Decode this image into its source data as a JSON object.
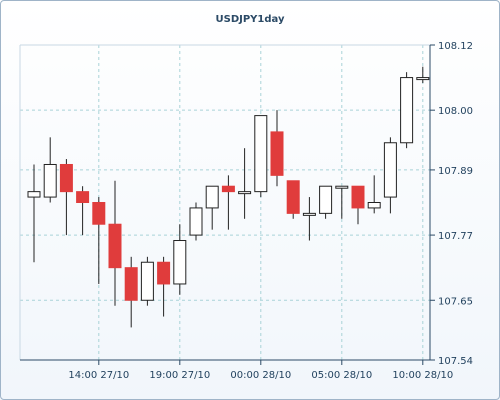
{
  "chart_data": {
    "type": "candlestick",
    "title": "USDJPY1day",
    "xlabel": "",
    "ylabel": "",
    "ylim": [
      107.54,
      108.12
    ],
    "y_ticks": [
      "108.12",
      "108.00",
      "107.89",
      "107.77",
      "107.65",
      "107.54"
    ],
    "x_ticks": [
      "14:00 27/10",
      "19:00 27/10",
      "00:00 28/10",
      "05:00 28/10",
      "10:00 28/10"
    ],
    "grid": true,
    "y_axis_position": "right",
    "colors": {
      "up_fill": "#ffffff",
      "down_fill": "#e03c3c",
      "outline": "#222222",
      "grid": "#a9d3d8"
    },
    "candles": [
      {
        "o": 107.84,
        "h": 107.9,
        "l": 107.72,
        "c": 107.85
      },
      {
        "o": 107.84,
        "h": 107.95,
        "l": 107.83,
        "c": 107.9
      },
      {
        "o": 107.9,
        "h": 107.91,
        "l": 107.77,
        "c": 107.85
      },
      {
        "o": 107.85,
        "h": 107.86,
        "l": 107.77,
        "c": 107.83
      },
      {
        "o": 107.83,
        "h": 107.84,
        "l": 107.68,
        "c": 107.79
      },
      {
        "o": 107.79,
        "h": 107.87,
        "l": 107.64,
        "c": 107.71
      },
      {
        "o": 107.71,
        "h": 107.73,
        "l": 107.6,
        "c": 107.65
      },
      {
        "o": 107.65,
        "h": 107.73,
        "l": 107.64,
        "c": 107.72
      },
      {
        "o": 107.72,
        "h": 107.73,
        "l": 107.62,
        "c": 107.68
      },
      {
        "o": 107.68,
        "h": 107.79,
        "l": 107.66,
        "c": 107.76
      },
      {
        "o": 107.77,
        "h": 107.83,
        "l": 107.76,
        "c": 107.82
      },
      {
        "o": 107.82,
        "h": 107.86,
        "l": 107.78,
        "c": 107.86
      },
      {
        "o": 107.86,
        "h": 107.88,
        "l": 107.78,
        "c": 107.85
      },
      {
        "o": 107.85,
        "h": 107.93,
        "l": 107.8,
        "c": 107.85
      },
      {
        "o": 107.85,
        "h": 107.99,
        "l": 107.84,
        "c": 107.99
      },
      {
        "o": 107.96,
        "h": 108.0,
        "l": 107.86,
        "c": 107.88
      },
      {
        "o": 107.87,
        "h": 107.87,
        "l": 107.8,
        "c": 107.81
      },
      {
        "o": 107.81,
        "h": 107.84,
        "l": 107.76,
        "c": 107.81
      },
      {
        "o": 107.81,
        "h": 107.86,
        "l": 107.8,
        "c": 107.86
      },
      {
        "o": 107.86,
        "h": 107.86,
        "l": 107.8,
        "c": 107.86
      },
      {
        "o": 107.86,
        "h": 107.86,
        "l": 107.79,
        "c": 107.82
      },
      {
        "o": 107.82,
        "h": 107.88,
        "l": 107.81,
        "c": 107.83
      },
      {
        "o": 107.84,
        "h": 107.95,
        "l": 107.81,
        "c": 107.94
      },
      {
        "o": 107.94,
        "h": 108.07,
        "l": 107.93,
        "c": 108.06
      },
      {
        "o": 108.06,
        "h": 108.08,
        "l": 108.05,
        "c": 108.06
      }
    ]
  }
}
